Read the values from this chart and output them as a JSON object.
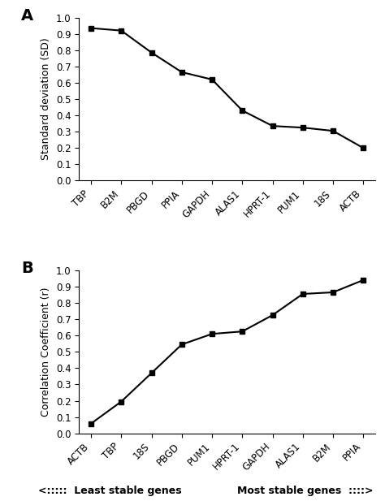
{
  "panel_A": {
    "x_labels": [
      "TBP",
      "B2M",
      "PBGD",
      "PPIA",
      "GAPDH",
      "ALAS1",
      "HPRT-1",
      "PUM1",
      "18S",
      "ACTB"
    ],
    "y_values": [
      0.935,
      0.92,
      0.785,
      0.665,
      0.62,
      0.43,
      0.335,
      0.325,
      0.305,
      0.2
    ],
    "ylabel": "Standard deviation (SD)",
    "ylim": [
      0.0,
      1.0
    ],
    "yticks": [
      0.0,
      0.1,
      0.2,
      0.3,
      0.4,
      0.5,
      0.6,
      0.7,
      0.8,
      0.9,
      1.0
    ],
    "panel_label": "A"
  },
  "panel_B": {
    "x_labels": [
      "ACTB",
      "TBP",
      "18S",
      "PBGD",
      "PUM1",
      "HPRT-1",
      "GAPDH",
      "ALAS1",
      "B2M",
      "PPIA"
    ],
    "y_values": [
      0.06,
      0.195,
      0.37,
      0.545,
      0.61,
      0.625,
      0.725,
      0.855,
      0.865,
      0.94
    ],
    "ylabel": "Correlation Coefficient (r)",
    "ylim": [
      0.0,
      1.0
    ],
    "yticks": [
      0.0,
      0.1,
      0.2,
      0.3,
      0.4,
      0.5,
      0.6,
      0.7,
      0.8,
      0.9,
      1.0
    ],
    "panel_label": "B"
  },
  "bottom_label_left": "<:::::  Least stable genes",
  "bottom_label_right": "Most stable genes  ::::>",
  "line_color": "#000000",
  "marker": "s",
  "marker_size": 4.5,
  "line_width": 1.5,
  "tick_label_rotation": 45,
  "background_color": "#ffffff",
  "figsize": [
    4.74,
    6.17
  ],
  "dpi": 100
}
